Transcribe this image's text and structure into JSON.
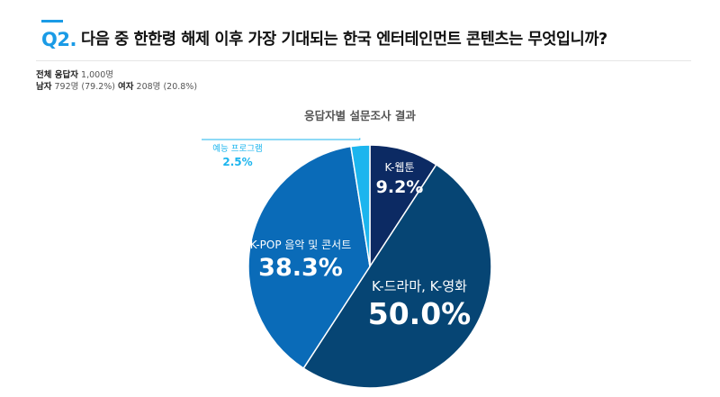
{
  "question": {
    "badge": "Q2.",
    "text": "다음 중 한한령 해제 이후 가장 기대되는 한국 엔터테인먼트 콘텐츠는 무엇입니까?"
  },
  "respondents": {
    "total_label": "전체 응답자",
    "total_value": "1,000명",
    "male_label": "남자",
    "male_value": "792명 (79.2%)",
    "female_label": "여자",
    "female_value": "208명 (20.8%)"
  },
  "chart_data": {
    "type": "pie",
    "title": "응답자별 설문조사 결과",
    "start_angle_deg": 0,
    "direction": "clockwise",
    "slices": [
      {
        "label": "K-웹툰",
        "value": 9.2,
        "display": "9.2%",
        "color": "#0c2a63"
      },
      {
        "label": "K-드라마, K-영화",
        "value": 50.0,
        "display": "50.0%",
        "color": "#064574"
      },
      {
        "label": "K-POP 음악 및 콘서트",
        "value": 38.3,
        "display": "38.3%",
        "color": "#0a6bb8"
      },
      {
        "label": "예능 프로그램",
        "value": 2.5,
        "display": "2.5%",
        "color": "#1cb5ee"
      }
    ]
  }
}
